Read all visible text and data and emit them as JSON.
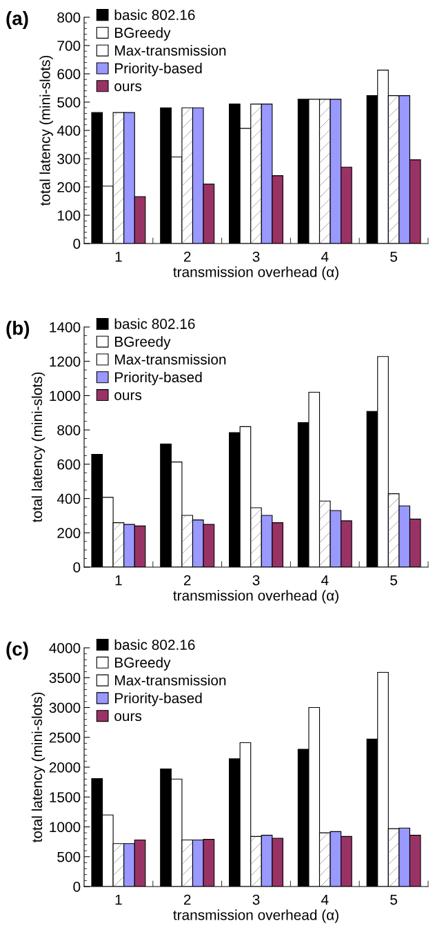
{
  "chart_data": [
    {
      "type": "bar",
      "title": "(a)",
      "xlabel": "transmission overhead (α)",
      "ylabel": "total latency (mini-slots)",
      "categories": [
        "1",
        "2",
        "3",
        "4",
        "5"
      ],
      "ylim": [
        0,
        800
      ],
      "yticks": [
        0,
        100,
        200,
        300,
        400,
        500,
        600,
        700,
        800
      ],
      "legend": "top left",
      "grid": false,
      "series": [
        {
          "name": "basic 802.16",
          "color": "#000000",
          "values": [
            463,
            480,
            493,
            510,
            523
          ]
        },
        {
          "name": "BGreedy",
          "color": "#ffffff",
          "values": [
            203,
            306,
            407,
            510,
            613
          ]
        },
        {
          "name": "Max-transmission",
          "color": "#ffffff",
          "values": [
            463,
            480,
            493,
            510,
            523
          ]
        },
        {
          "name": "Priority-based",
          "color": "#9999ff",
          "values": [
            463,
            480,
            493,
            510,
            523
          ]
        },
        {
          "name": "ours",
          "color": "#993366",
          "values": [
            166,
            210,
            240,
            270,
            296
          ]
        }
      ]
    },
    {
      "type": "bar",
      "title": "(b)",
      "xlabel": "transmission overhead (α)",
      "ylabel": "total latency (mini-slots)",
      "categories": [
        "1",
        "2",
        "3",
        "4",
        "5"
      ],
      "ylim": [
        0,
        1400
      ],
      "yticks": [
        0,
        200,
        400,
        600,
        800,
        1000,
        1200,
        1400
      ],
      "legend": "top left",
      "grid": false,
      "series": [
        {
          "name": "basic 802.16",
          "color": "#000000",
          "values": [
            658,
            718,
            784,
            843,
            908
          ]
        },
        {
          "name": "BGreedy",
          "color": "#ffffff",
          "values": [
            407,
            613,
            819,
            1020,
            1228
          ]
        },
        {
          "name": "Max-transmission",
          "color": "#ffffff",
          "values": [
            259,
            302,
            346,
            385,
            428
          ]
        },
        {
          "name": "Priority-based",
          "color": "#9999ff",
          "values": [
            249,
            275,
            302,
            330,
            357
          ]
        },
        {
          "name": "ours",
          "color": "#993366",
          "values": [
            240,
            249,
            259,
            270,
            280
          ]
        }
      ]
    },
    {
      "type": "bar",
      "title": "(c)",
      "xlabel": "transmission overhead (α)",
      "ylabel": "total latency (mini-slots)",
      "categories": [
        "1",
        "2",
        "3",
        "4",
        "5"
      ],
      "ylim": [
        0,
        4000
      ],
      "yticks": [
        0,
        500,
        1000,
        1500,
        2000,
        2500,
        3000,
        3500,
        4000
      ],
      "legend": "top left",
      "grid": false,
      "series": [
        {
          "name": "basic 802.16",
          "color": "#000000",
          "values": [
            1810,
            1970,
            2140,
            2300,
            2470
          ]
        },
        {
          "name": "BGreedy",
          "color": "#ffffff",
          "values": [
            1200,
            1800,
            2410,
            3000,
            3590
          ]
        },
        {
          "name": "Max-transmission",
          "color": "#ffffff",
          "values": [
            720,
            780,
            840,
            900,
            970
          ]
        },
        {
          "name": "Priority-based",
          "color": "#9999ff",
          "values": [
            720,
            780,
            860,
            920,
            980
          ]
        },
        {
          "name": "ours",
          "color": "#993366",
          "values": [
            780,
            790,
            810,
            840,
            860
          ]
        }
      ]
    }
  ]
}
